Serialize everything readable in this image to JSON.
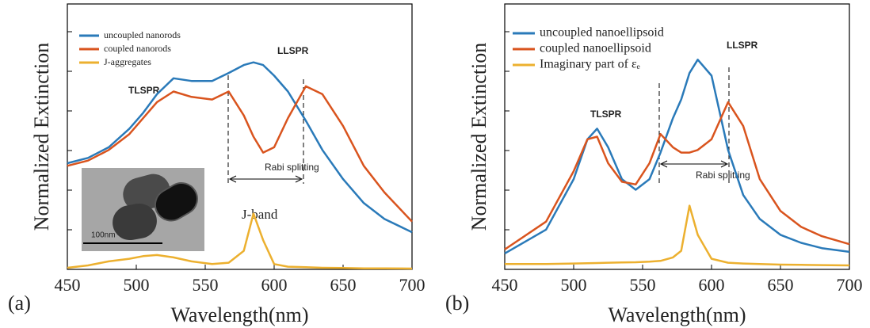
{
  "chart_data": [
    {
      "type": "line",
      "panel_label": "(a)",
      "xlabel": "Wavelength(nm)",
      "ylabel": "Normalized Extinction",
      "x": [
        450,
        465,
        480,
        495,
        505,
        515,
        527,
        540,
        555,
        567,
        578,
        585,
        592,
        600,
        610,
        623,
        635,
        650,
        665,
        680,
        700
      ],
      "series": [
        {
          "name": "uncoupled nanorods",
          "color": "#2a7ab9",
          "values": [
            0.4,
            0.42,
            0.46,
            0.53,
            0.59,
            0.66,
            0.72,
            0.71,
            0.71,
            0.74,
            0.77,
            0.78,
            0.77,
            0.73,
            0.67,
            0.56,
            0.45,
            0.34,
            0.25,
            0.19,
            0.14
          ]
        },
        {
          "name": "coupled nanorods",
          "color": "#d9541e",
          "values": [
            0.39,
            0.41,
            0.45,
            0.51,
            0.57,
            0.63,
            0.67,
            0.65,
            0.64,
            0.67,
            0.58,
            0.5,
            0.44,
            0.46,
            0.57,
            0.69,
            0.66,
            0.54,
            0.39,
            0.29,
            0.18
          ]
        },
        {
          "name": "J-aggregates",
          "color": "#ecb02f",
          "values": [
            0.006,
            0.015,
            0.03,
            0.04,
            0.05,
            0.054,
            0.045,
            0.03,
            0.02,
            0.025,
            0.07,
            0.21,
            0.11,
            0.02,
            0.01,
            0.008,
            0.006,
            0.005,
            0.004,
            0.004,
            0.003
          ]
        }
      ],
      "annotations": [
        "TLSPR",
        "LLSPR",
        "Rabi splitting",
        "J-band",
        "100nm"
      ],
      "xlim": [
        450,
        700
      ],
      "xticks": [
        450,
        500,
        550,
        600,
        650,
        700
      ],
      "ylim": [
        0,
        1
      ]
    },
    {
      "type": "line",
      "panel_label": "(b)",
      "xlabel": "Wavelength(nm)",
      "ylabel": "Normalized Extinction",
      "x": [
        450,
        480,
        500,
        510,
        517,
        525,
        535,
        545,
        555,
        563,
        572,
        578,
        584,
        590,
        600,
        612,
        623,
        635,
        650,
        665,
        680,
        700
      ],
      "series": [
        {
          "name": "uncoupled nanoellipsoid",
          "color": "#2a7ab9",
          "values": [
            0.06,
            0.15,
            0.34,
            0.49,
            0.53,
            0.46,
            0.34,
            0.3,
            0.34,
            0.44,
            0.57,
            0.64,
            0.74,
            0.79,
            0.73,
            0.45,
            0.28,
            0.19,
            0.13,
            0.1,
            0.08,
            0.066
          ]
        },
        {
          "name": "coupled nanoellipsoid",
          "color": "#d9541e",
          "values": [
            0.075,
            0.18,
            0.37,
            0.49,
            0.5,
            0.4,
            0.33,
            0.32,
            0.4,
            0.51,
            0.46,
            0.44,
            0.44,
            0.45,
            0.49,
            0.63,
            0.54,
            0.34,
            0.22,
            0.16,
            0.125,
            0.095
          ]
        },
        {
          "name": "Imaginary part of εₑ",
          "color": "#ecb02f",
          "values": [
            0.02,
            0.02,
            0.022,
            0.023,
            0.024,
            0.025,
            0.026,
            0.027,
            0.029,
            0.032,
            0.045,
            0.07,
            0.24,
            0.13,
            0.04,
            0.025,
            0.022,
            0.02,
            0.018,
            0.017,
            0.016,
            0.015
          ]
        }
      ],
      "annotations": [
        "TLSPR",
        "LLSPR",
        "Rabi splitting"
      ],
      "xlim": [
        450,
        700
      ],
      "xticks": [
        450,
        500,
        550,
        600,
        650,
        700
      ],
      "ylim": [
        0,
        1
      ]
    }
  ]
}
